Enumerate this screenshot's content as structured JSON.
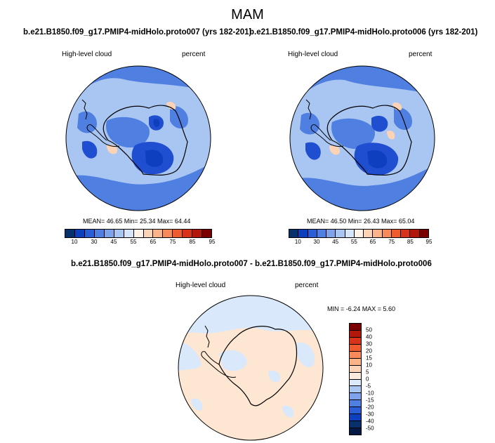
{
  "figure": {
    "main_title": "MAM",
    "panel1_title": "b.e21.B1850.f09_g17.PMIP4-midHolo.proto007 (yrs 182-201)",
    "panel2_title": "b.e21.B1850.f09_g17.PMIP4-midHolo.proto006 (yrs 182-201)",
    "diff_title": "b.e21.B1850.f09_g17.PMIP4-midHolo.proto007 - b.e21.B1850.f09_g17.PMIP4-midHolo.proto006"
  },
  "panels": {
    "left": {
      "variable": "High-level cloud",
      "units": "percent",
      "stats": "MEAN=  46.65  Min=  25.34  Max=  64.44"
    },
    "right": {
      "variable": "High-level cloud",
      "units": "percent",
      "stats": "MEAN=  46.50  Min=  26.43  Max=  65.04"
    },
    "diff": {
      "variable": "High-level cloud",
      "units": "percent",
      "stats": "MIN =  -6.24 MAX =   5.60"
    }
  },
  "colorbar_abs": {
    "labels": [
      "10",
      "30",
      "45",
      "55",
      "65",
      "75",
      "85",
      "95"
    ],
    "colors": [
      "#08306b",
      "#0d3fbf",
      "#2a5ed6",
      "#4f7fe0",
      "#7ea3ea",
      "#a9c6f2",
      "#d6e5fa",
      "#fff3e8",
      "#fdd3b5",
      "#fbb48a",
      "#f7895a",
      "#ee5b2e",
      "#d8331a",
      "#b3170c",
      "#7a0000"
    ]
  },
  "colorbar_diff": {
    "labels": [
      "50",
      "40",
      "30",
      "20",
      "15",
      "10",
      "5",
      "0",
      "-5",
      "-10",
      "-15",
      "-20",
      "-30",
      "-40",
      "-50"
    ],
    "colors": [
      "#7a0000",
      "#b3170c",
      "#d8331a",
      "#ee5b2e",
      "#f7895a",
      "#fbb48a",
      "#fdd3b5",
      "#fdebdc",
      "#dbe9fb",
      "#a9c6f2",
      "#7ea3ea",
      "#4f7fe0",
      "#2a5ed6",
      "#0d3fbf",
      "#08306b",
      "#041a45"
    ]
  },
  "map_colors": {
    "ocean_mid": "#a9c6f2",
    "ocean_dark": "#4f7fe0",
    "low": "#1f4fd0",
    "vlow": "#0d3fbf",
    "high": "#fdd3b5",
    "diff_pos": "#fde6d2",
    "diff_neg": "#d9e8fb"
  }
}
